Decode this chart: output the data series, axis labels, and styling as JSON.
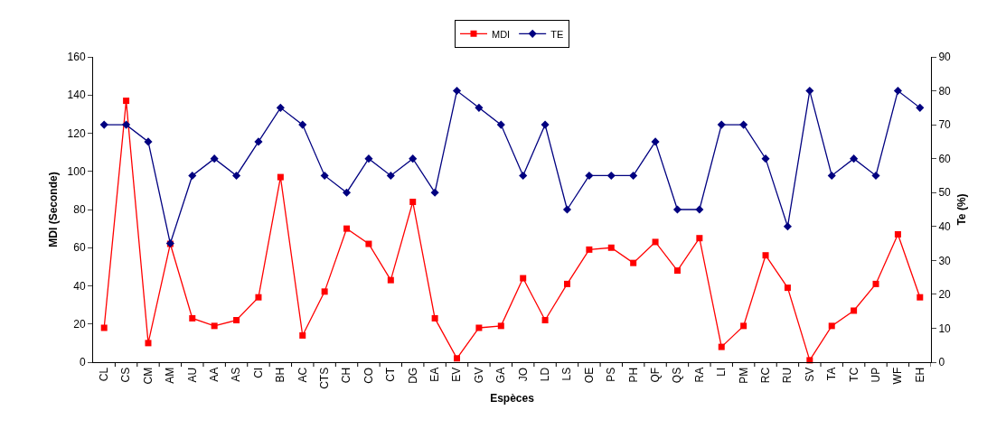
{
  "chart_data": {
    "type": "line",
    "xlabel": "Espèces",
    "ylabel": "MDI (Seconde)",
    "y2label": "Te (%)",
    "categories": [
      "CL",
      "CS",
      "CM",
      "AM",
      "AU",
      "AA",
      "AS",
      "CI",
      "BH",
      "AC",
      "CTS",
      "CH",
      "CO",
      "CT",
      "DG",
      "EA",
      "EV",
      "GV",
      "GA",
      "JO",
      "LD",
      "LS",
      "OE",
      "PS",
      "PH",
      "QF",
      "QS",
      "RA",
      "LI",
      "PM",
      "RC",
      "RU",
      "SV",
      "TA",
      "TC",
      "UP",
      "WF",
      "EH"
    ],
    "series": [
      {
        "name": "MDI",
        "color": "#ff0000",
        "marker": "square",
        "values": [
          18,
          137,
          10,
          62,
          23,
          19,
          22,
          34,
          97,
          14,
          37,
          70,
          62,
          43,
          84,
          23,
          2,
          18,
          19,
          44,
          22,
          41,
          59,
          60,
          52,
          63,
          48,
          65,
          8,
          19,
          56,
          39,
          1,
          19,
          27,
          41,
          67,
          34
        ]
      },
      {
        "name": "TE",
        "color": "#000080",
        "marker": "diamond",
        "axis": "y2",
        "values": [
          70,
          70,
          65,
          35,
          55,
          60,
          55,
          65,
          75,
          70,
          55,
          50,
          60,
          55,
          60,
          50,
          80,
          75,
          70,
          55,
          70,
          45,
          55,
          55,
          55,
          65,
          45,
          45,
          70,
          70,
          60,
          40,
          80,
          55,
          60,
          55,
          80,
          75
        ]
      }
    ],
    "ylim": [
      0,
      160
    ],
    "yticks": [
      0,
      20,
      40,
      60,
      80,
      100,
      120,
      140,
      160
    ],
    "y2lim": [
      0,
      90
    ],
    "y2ticks": [
      0,
      10,
      20,
      30,
      40,
      50,
      60,
      70,
      80,
      90
    ],
    "grid": false,
    "legend": "top",
    "line_style": "solid"
  }
}
